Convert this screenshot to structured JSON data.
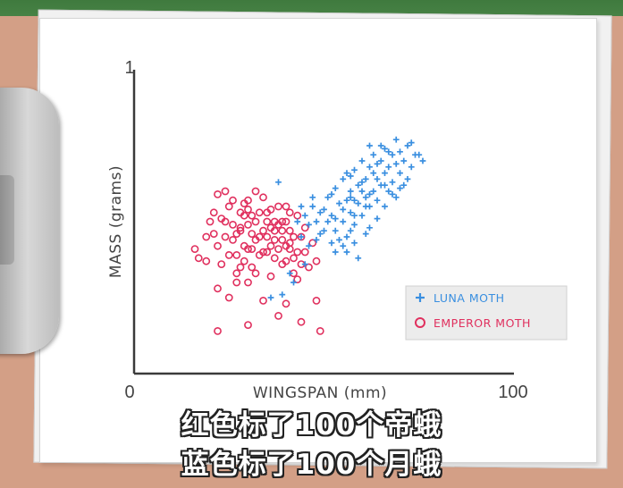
{
  "subtitles": [
    "红色标了100个帝蛾",
    "蓝色标了100个月蛾"
  ],
  "chart_data": {
    "type": "scatter",
    "xlabel": "WINGSPAN (mm)",
    "ylabel": "MASS (grams)",
    "xlim": [
      0,
      100
    ],
    "ylim": [
      0,
      1
    ],
    "x_tick_labels": [
      "0",
      "100"
    ],
    "y_tick_labels": [
      "1"
    ],
    "grid": false,
    "legend_position": "bottom-right",
    "series": [
      {
        "name": "LUNA MOTH",
        "marker": "plus",
        "color": "#3a8fe0",
        "points": [
          [
            38,
            0.63
          ],
          [
            43,
            0.5
          ],
          [
            46,
            0.49
          ],
          [
            47,
            0.55
          ],
          [
            48,
            0.5
          ],
          [
            49,
            0.46
          ],
          [
            50,
            0.54
          ],
          [
            51,
            0.58
          ],
          [
            52,
            0.52
          ],
          [
            53,
            0.47
          ],
          [
            53,
            0.61
          ],
          [
            54,
            0.56
          ],
          [
            55,
            0.5
          ],
          [
            55,
            0.64
          ],
          [
            56,
            0.57
          ],
          [
            56,
            0.45
          ],
          [
            57,
            0.53
          ],
          [
            57,
            0.6
          ],
          [
            58,
            0.67
          ],
          [
            58,
            0.49
          ],
          [
            59,
            0.56
          ],
          [
            59,
            0.62
          ],
          [
            60,
            0.52
          ],
          [
            60,
            0.7
          ],
          [
            61,
            0.58
          ],
          [
            61,
            0.64
          ],
          [
            62,
            0.55
          ],
          [
            62,
            0.68
          ],
          [
            63,
            0.6
          ],
          [
            63,
            0.72
          ],
          [
            64,
            0.64
          ],
          [
            64,
            0.57
          ],
          [
            65,
            0.7
          ],
          [
            65,
            0.62
          ],
          [
            66,
            0.66
          ],
          [
            66,
            0.74
          ],
          [
            67,
            0.6
          ],
          [
            67,
            0.68
          ],
          [
            68,
            0.72
          ],
          [
            68,
            0.63
          ],
          [
            69,
            0.69
          ],
          [
            69,
            0.77
          ],
          [
            70,
            0.66
          ],
          [
            70,
            0.73
          ],
          [
            71,
            0.62
          ],
          [
            71,
            0.7
          ],
          [
            72,
            0.75
          ],
          [
            73,
            0.68
          ],
          [
            74,
            0.72
          ],
          [
            76,
            0.7
          ],
          [
            54,
            0.44
          ],
          [
            56,
            0.4
          ],
          [
            58,
            0.43
          ],
          [
            52,
            0.59
          ],
          [
            60,
            0.6
          ],
          [
            62,
            0.48
          ],
          [
            64,
            0.51
          ],
          [
            66,
            0.55
          ],
          [
            58,
            0.52
          ],
          [
            50,
            0.47
          ],
          [
            47,
            0.58
          ],
          [
            45,
            0.52
          ],
          [
            57,
            0.65
          ],
          [
            61,
            0.46
          ],
          [
            63,
            0.66
          ],
          [
            67,
            0.73
          ],
          [
            55,
            0.42
          ],
          [
            59,
            0.38
          ],
          [
            53,
            0.4
          ],
          [
            44,
            0.45
          ],
          [
            57,
            0.47
          ],
          [
            61,
            0.55
          ],
          [
            55,
            0.54
          ],
          [
            60,
            0.63
          ],
          [
            66,
            0.62
          ],
          [
            51,
            0.5
          ],
          [
            48,
            0.44
          ],
          [
            46,
            0.42
          ],
          [
            41,
            0.33
          ],
          [
            39,
            0.26
          ],
          [
            42,
            0.3
          ],
          [
            36,
            0.25
          ],
          [
            45,
            0.36
          ],
          [
            58,
            0.57
          ],
          [
            62,
            0.59
          ],
          [
            64,
            0.69
          ],
          [
            70,
            0.61
          ],
          [
            68,
            0.59
          ],
          [
            72,
            0.64
          ],
          [
            73,
            0.76
          ],
          [
            75,
            0.72
          ],
          [
            62,
            0.75
          ],
          [
            56,
            0.66
          ],
          [
            52,
            0.43
          ],
          [
            49,
            0.53
          ],
          [
            53,
            0.51
          ],
          [
            57,
            0.58
          ],
          [
            65,
            0.75
          ],
          [
            69,
            0.58
          ],
          [
            44,
            0.55
          ]
        ]
      },
      {
        "name": "EMPEROR MOTH",
        "marker": "circle",
        "color": "#e0305e",
        "points": [
          [
            17,
            0.38
          ],
          [
            19,
            0.45
          ],
          [
            21,
            0.53
          ],
          [
            22,
            0.42
          ],
          [
            23,
            0.36
          ],
          [
            24,
            0.5
          ],
          [
            25,
            0.55
          ],
          [
            26,
            0.44
          ],
          [
            27,
            0.39
          ],
          [
            28,
            0.47
          ],
          [
            29,
            0.52
          ],
          [
            30,
            0.57
          ],
          [
            30,
            0.41
          ],
          [
            31,
            0.35
          ],
          [
            32,
            0.5
          ],
          [
            33,
            0.45
          ],
          [
            34,
            0.58
          ],
          [
            35,
            0.4
          ],
          [
            35,
            0.53
          ],
          [
            36,
            0.48
          ],
          [
            37,
            0.44
          ],
          [
            38,
            0.55
          ],
          [
            39,
            0.5
          ],
          [
            40,
            0.42
          ],
          [
            41,
            0.47
          ],
          [
            42,
            0.38
          ],
          [
            43,
            0.52
          ],
          [
            44,
            0.45
          ],
          [
            45,
            0.4
          ],
          [
            46,
            0.35
          ],
          [
            20,
            0.5
          ],
          [
            24,
            0.45
          ],
          [
            26,
            0.57
          ],
          [
            28,
            0.53
          ],
          [
            31,
            0.46
          ],
          [
            33,
            0.39
          ],
          [
            36,
            0.54
          ],
          [
            38,
            0.41
          ],
          [
            40,
            0.5
          ],
          [
            42,
            0.45
          ],
          [
            44,
            0.36
          ],
          [
            25,
            0.39
          ],
          [
            27,
            0.33
          ],
          [
            29,
            0.42
          ],
          [
            31,
            0.52
          ],
          [
            34,
            0.47
          ],
          [
            37,
            0.5
          ],
          [
            39,
            0.36
          ],
          [
            41,
            0.41
          ],
          [
            43,
            0.31
          ],
          [
            23,
            0.51
          ],
          [
            21,
            0.46
          ],
          [
            26,
            0.49
          ],
          [
            29,
            0.56
          ],
          [
            32,
            0.6
          ],
          [
            35,
            0.45
          ],
          [
            38,
            0.49
          ],
          [
            40,
            0.37
          ],
          [
            22,
            0.59
          ],
          [
            24,
            0.6
          ],
          [
            28,
            0.35
          ],
          [
            30,
            0.49
          ],
          [
            33,
            0.53
          ],
          [
            36,
            0.42
          ],
          [
            39,
            0.44
          ],
          [
            41,
            0.53
          ],
          [
            43,
            0.4
          ],
          [
            45,
            0.48
          ],
          [
            47,
            0.43
          ],
          [
            48,
            0.37
          ],
          [
            16,
            0.41
          ],
          [
            19,
            0.37
          ],
          [
            22,
            0.28
          ],
          [
            25,
            0.25
          ],
          [
            27,
            0.3
          ],
          [
            30,
            0.3
          ],
          [
            32,
            0.33
          ],
          [
            34,
            0.24
          ],
          [
            36,
            0.32
          ],
          [
            40,
            0.23
          ],
          [
            42,
            0.33
          ],
          [
            48,
            0.24
          ],
          [
            22,
            0.14
          ],
          [
            30,
            0.16
          ],
          [
            38,
            0.19
          ],
          [
            44,
            0.17
          ],
          [
            49,
            0.14
          ],
          [
            28,
            0.48
          ],
          [
            30,
            0.54
          ],
          [
            32,
            0.44
          ],
          [
            34,
            0.4
          ],
          [
            37,
            0.38
          ],
          [
            39,
            0.47
          ],
          [
            41,
            0.43
          ],
          [
            27,
            0.46
          ],
          [
            29,
            0.37
          ],
          [
            31,
            0.41
          ],
          [
            35,
            0.5
          ],
          [
            37,
            0.47
          ],
          [
            40,
            0.55
          ]
        ]
      }
    ]
  }
}
